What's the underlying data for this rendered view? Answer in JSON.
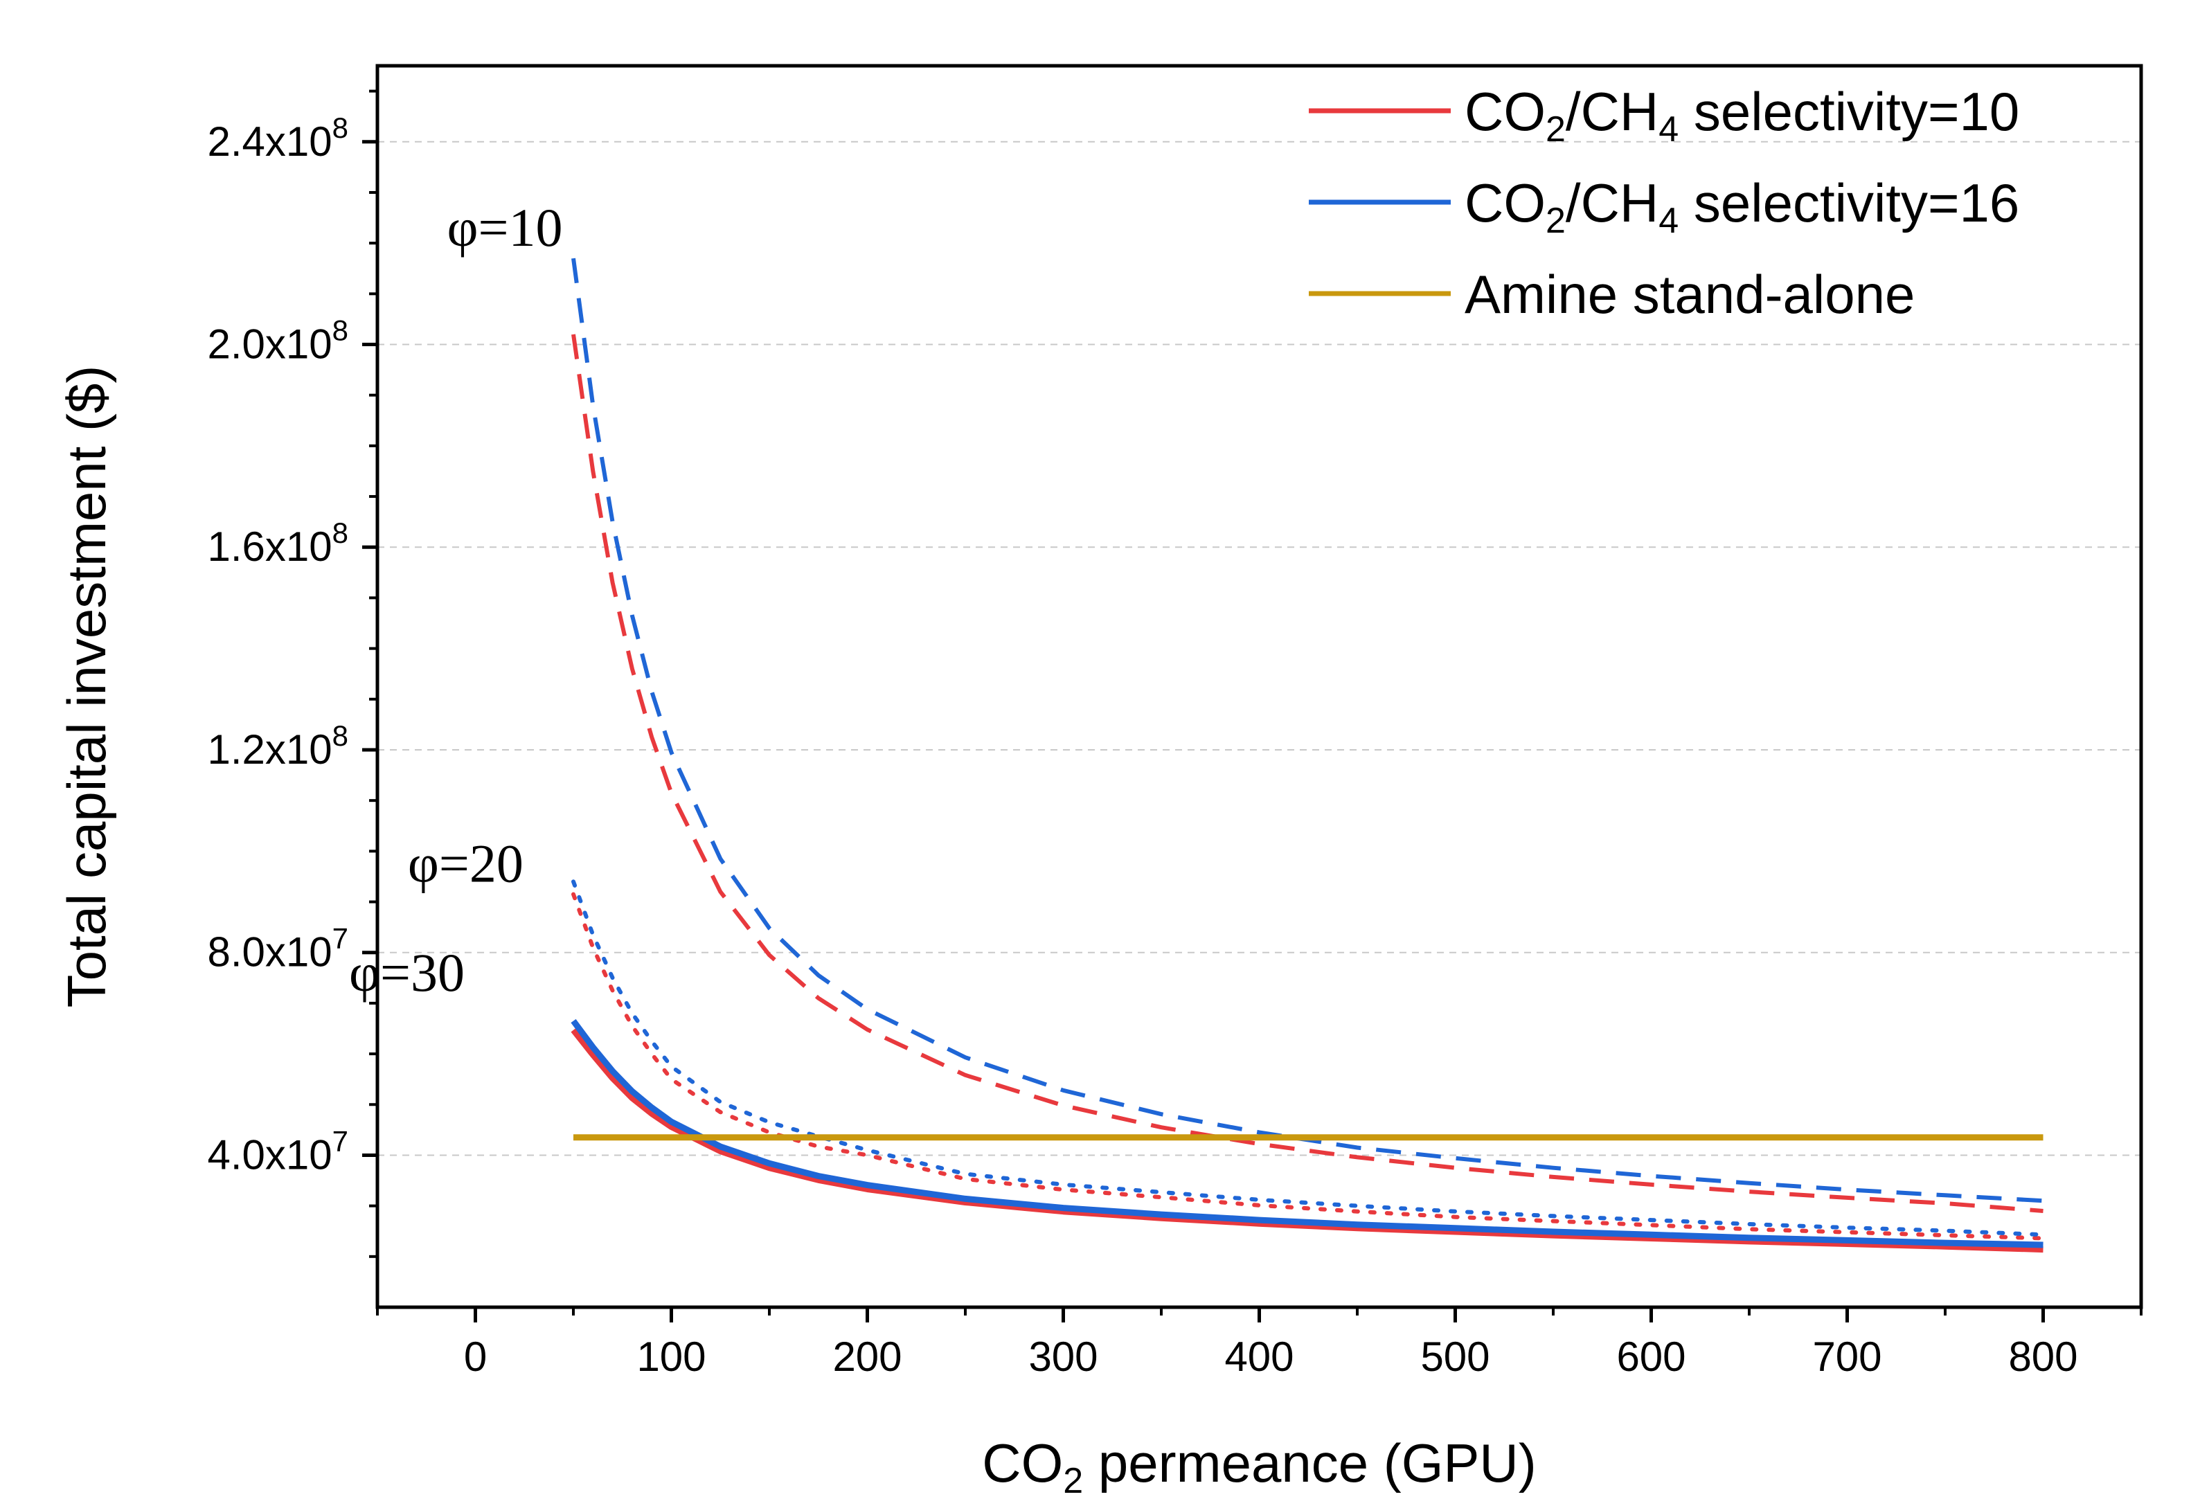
{
  "chart_data": {
    "type": "line",
    "title": "",
    "xlabel": {
      "base": "CO",
      "sub": "2",
      "rest": " permeance (GPU)"
    },
    "ylabel": "Total capital investment ($)",
    "xlim": [
      -50,
      850
    ],
    "ylim": [
      10000000,
      255000000
    ],
    "x_ticks": [
      0,
      100,
      200,
      300,
      400,
      500,
      600,
      700,
      800
    ],
    "x_tick_labels": [
      "0",
      "100",
      "200",
      "300",
      "400",
      "500",
      "600",
      "700",
      "800"
    ],
    "y_ticks": [
      {
        "value": 40000000,
        "mantissa": "4.0x10",
        "exp": "7"
      },
      {
        "value": 80000000,
        "mantissa": "8.0x10",
        "exp": "7"
      },
      {
        "value": 120000000,
        "mantissa": "1.2x10",
        "exp": "8"
      },
      {
        "value": 160000000,
        "mantissa": "1.6x10",
        "exp": "8"
      },
      {
        "value": 200000000,
        "mantissa": "2.0x10",
        "exp": "8"
      },
      {
        "value": 240000000,
        "mantissa": "2.4x10",
        "exp": "8"
      }
    ],
    "grid": "horizontal dashed",
    "legend": {
      "position": "top-right",
      "entries": [
        {
          "key": "sel10",
          "color": "#e8393d",
          "parts": [
            "CO",
            "2",
            "/CH",
            "4",
            " selectivity=10"
          ]
        },
        {
          "key": "sel16",
          "color": "#1f66d6",
          "parts": [
            "CO",
            "2",
            "/CH",
            "4",
            " selectivity=16"
          ]
        },
        {
          "key": "amine",
          "color": "#c9980e",
          "label": "Amine stand-alone"
        }
      ]
    },
    "annotations": [
      {
        "text": "φ=10",
        "x": 15,
        "y": 217000000
      },
      {
        "text": "φ=20",
        "x": -5,
        "y": 91500000
      },
      {
        "text": "φ=30",
        "x": -35,
        "y": 70000000
      }
    ],
    "x": [
      50,
      60,
      70,
      80,
      90,
      100,
      125,
      150,
      175,
      200,
      250,
      300,
      350,
      400,
      450,
      500,
      550,
      600,
      650,
      700,
      750,
      800
    ],
    "series": [
      {
        "name": "φ=10, selectivity=10",
        "color": "#e8393d",
        "style": "dashed",
        "values": [
          202000000,
          175000000,
          153000000,
          136000000,
          122500000,
          111500000,
          92000000,
          79500000,
          71000000,
          64800000,
          55800000,
          49800000,
          45500000,
          42200000,
          39600000,
          37500000,
          35700000,
          34200000,
          32800000,
          31600000,
          30500000,
          29000000
        ]
      },
      {
        "name": "φ=10, selectivity=16",
        "color": "#1f66d6",
        "style": "dashed",
        "values": [
          217000000,
          188000000,
          165000000,
          146500000,
          131500000,
          119500000,
          98500000,
          84800000,
          75500000,
          68800000,
          59300000,
          52800000,
          48100000,
          44500000,
          41500000,
          39400000,
          37500000,
          35900000,
          34500000,
          33200000,
          32100000,
          31000000
        ]
      },
      {
        "name": "φ=20, selectivity=10",
        "color": "#e8393d",
        "style": "dotted",
        "values": [
          91500000,
          81000000,
          72500000,
          65500000,
          60000000,
          55000000,
          48500000,
          44500000,
          41700000,
          40000000,
          35300000,
          33200000,
          31700000,
          30100000,
          28900000,
          27800000,
          27000000,
          26200000,
          25400000,
          24800000,
          24200000,
          23600000
        ]
      },
      {
        "name": "φ=20, selectivity=16",
        "color": "#1f66d6",
        "style": "dotted",
        "values": [
          94000000,
          83500000,
          75000000,
          68000000,
          62500000,
          57500000,
          50500000,
          46500000,
          43700000,
          41000000,
          36300000,
          34200000,
          32700000,
          31200000,
          30000000,
          28900000,
          28000000,
          27200000,
          26400000,
          25700000,
          25100000,
          24300000
        ]
      },
      {
        "name": "φ=30, selectivity=10",
        "color": "#e8393d",
        "style": "solid",
        "values": [
          64700000,
          59800000,
          55200000,
          51300000,
          48200000,
          45600000,
          40800000,
          37500000,
          35100000,
          33300000,
          30700000,
          28900000,
          27600000,
          26500000,
          25600000,
          24900000,
          24200000,
          23600000,
          23000000,
          22500000,
          22000000,
          21400000
        ]
      },
      {
        "name": "φ=30, selectivity=16",
        "color": "#1f66d6",
        "style": "solid",
        "values": [
          66500000,
          61300000,
          56600000,
          52600000,
          49400000,
          46600000,
          41700000,
          38400000,
          35900000,
          34100000,
          31400000,
          29600000,
          28300000,
          27200000,
          26300000,
          25600000,
          24900000,
          24300000,
          23700000,
          23200000,
          22700000,
          22300000
        ]
      },
      {
        "name": "Amine stand-alone",
        "color": "#c9980e",
        "style": "solid",
        "x": [
          50,
          800
        ],
        "values": [
          43500000,
          43500000
        ]
      }
    ]
  }
}
